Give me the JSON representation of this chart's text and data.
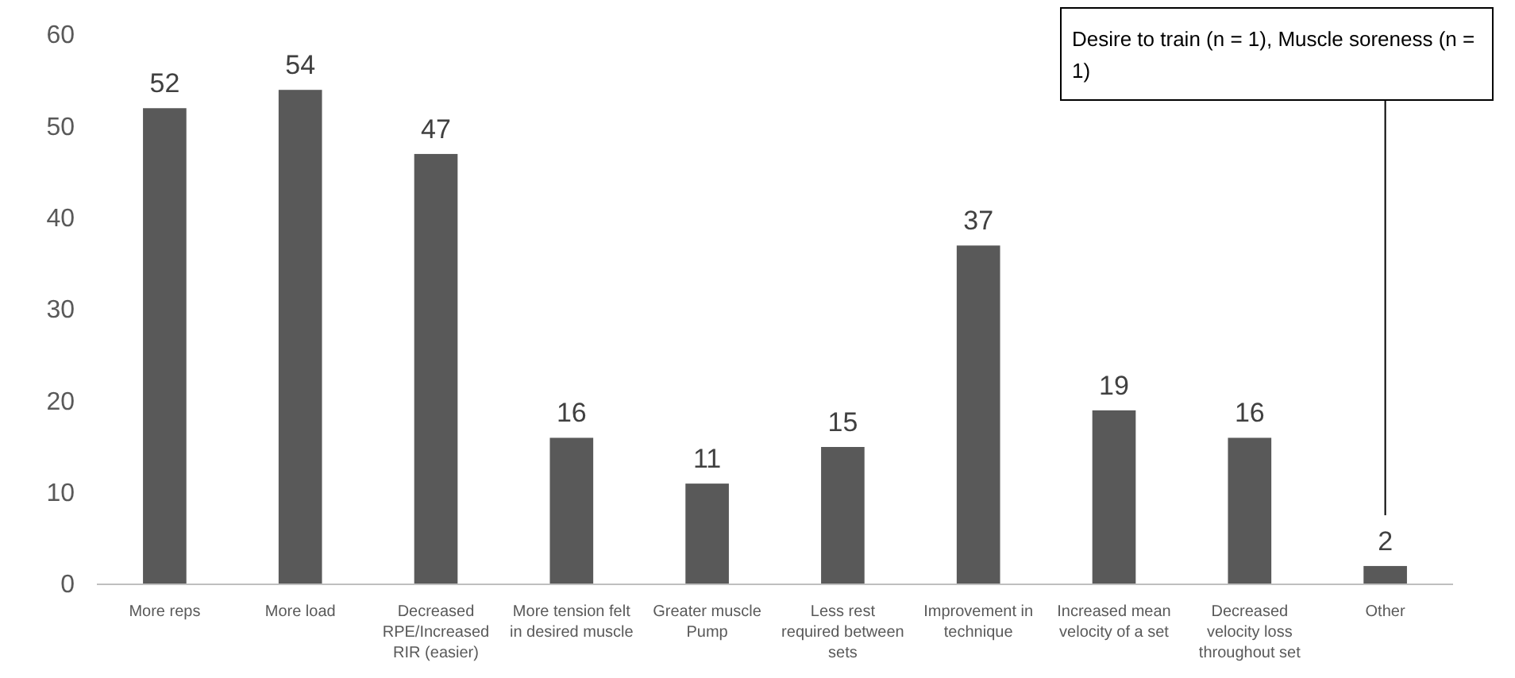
{
  "chart_data": {
    "type": "bar",
    "categories": [
      "More reps",
      "More load",
      "Decreased RPE/Increased RIR (easier)",
      "More tension felt in desired muscle",
      "Greater muscle Pump",
      "Less rest required between sets",
      "Improvement in technique",
      "Increased mean velocity of a set",
      "Decreased velocity loss throughout set",
      "Other"
    ],
    "values": [
      52,
      54,
      47,
      16,
      11,
      15,
      37,
      19,
      16,
      2
    ],
    "color": "#595959",
    "ylim": [
      0,
      60
    ],
    "yticks": [
      0,
      10,
      20,
      30,
      40,
      50,
      60
    ],
    "data_labels": true,
    "annotations": [
      "Desire to train (n = 1), Muscle soreness (n = 1)"
    ]
  }
}
